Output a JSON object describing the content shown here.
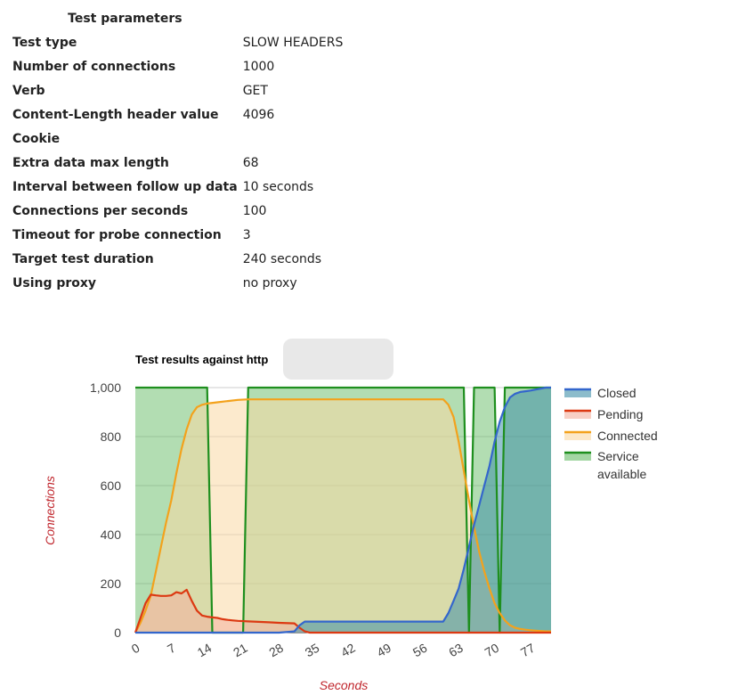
{
  "params": {
    "header": "Test parameters",
    "rows": [
      {
        "label": "Test type",
        "value": "SLOW HEADERS"
      },
      {
        "label": "Number of connections",
        "value": "1000"
      },
      {
        "label": "Verb",
        "value": "GET"
      },
      {
        "label": "Content-Length header value",
        "value": "4096"
      },
      {
        "label": "Cookie",
        "value": ""
      },
      {
        "label": "Extra data max length",
        "value": "68"
      },
      {
        "label": "Interval between follow up data",
        "value": "10 seconds"
      },
      {
        "label": "Connections per seconds",
        "value": "100"
      },
      {
        "label": "Timeout for probe connection",
        "value": "3"
      },
      {
        "label": "Target test duration",
        "value": "240 seconds"
      },
      {
        "label": "Using proxy",
        "value": "no proxy"
      }
    ]
  },
  "chart_data": {
    "type": "area",
    "title": "Test results against http",
    "xlabel": "Seconds",
    "ylabel": "Connections",
    "xlim": [
      0,
      81
    ],
    "ylim": [
      0,
      1000
    ],
    "x_ticks": [
      "0",
      "7",
      "14",
      "21",
      "28",
      "35",
      "42",
      "49",
      "56",
      "63",
      "70",
      "77"
    ],
    "y_ticks": [
      "0",
      "200",
      "400",
      "600",
      "800",
      "1,000"
    ],
    "legend_position": "right",
    "series": [
      {
        "name": "Closed",
        "color": "#3366cc",
        "fill": "#3f8fa8",
        "points": [
          [
            0,
            0
          ],
          [
            28,
            0
          ],
          [
            31,
            5
          ],
          [
            32,
            30
          ],
          [
            33,
            45
          ],
          [
            35,
            45
          ],
          [
            45,
            45
          ],
          [
            55,
            45
          ],
          [
            60,
            45
          ],
          [
            61,
            80
          ],
          [
            62,
            130
          ],
          [
            63,
            180
          ],
          [
            64,
            260
          ],
          [
            65,
            350
          ],
          [
            66,
            440
          ],
          [
            67,
            520
          ],
          [
            68,
            600
          ],
          [
            69,
            680
          ],
          [
            70,
            780
          ],
          [
            71,
            860
          ],
          [
            72,
            920
          ],
          [
            73,
            960
          ],
          [
            74,
            975
          ],
          [
            75,
            982
          ],
          [
            76,
            985
          ],
          [
            77,
            988
          ],
          [
            78,
            992
          ],
          [
            80,
            1000
          ],
          [
            81,
            1000
          ]
        ]
      },
      {
        "name": "Pending",
        "color": "#dc3912",
        "fill": "#f4b19e",
        "points": [
          [
            0,
            0
          ],
          [
            1,
            60
          ],
          [
            2,
            120
          ],
          [
            3,
            155
          ],
          [
            4,
            152
          ],
          [
            5,
            150
          ],
          [
            6,
            150
          ],
          [
            7,
            152
          ],
          [
            8,
            165
          ],
          [
            9,
            160
          ],
          [
            10,
            175
          ],
          [
            11,
            130
          ],
          [
            12,
            90
          ],
          [
            13,
            70
          ],
          [
            14,
            65
          ],
          [
            15,
            62
          ],
          [
            16,
            60
          ],
          [
            17,
            55
          ],
          [
            18,
            52
          ],
          [
            19,
            50
          ],
          [
            20,
            48
          ],
          [
            22,
            46
          ],
          [
            24,
            44
          ],
          [
            26,
            42
          ],
          [
            28,
            40
          ],
          [
            31,
            38
          ],
          [
            32,
            20
          ],
          [
            33,
            5
          ],
          [
            34,
            0
          ],
          [
            81,
            0
          ]
        ]
      },
      {
        "name": "Connected",
        "color": "#f3a21c",
        "fill": "#fad9a4",
        "points": [
          [
            0,
            0
          ],
          [
            1,
            40
          ],
          [
            2,
            90
          ],
          [
            3,
            150
          ],
          [
            4,
            250
          ],
          [
            5,
            350
          ],
          [
            6,
            450
          ],
          [
            7,
            540
          ],
          [
            8,
            650
          ],
          [
            9,
            750
          ],
          [
            10,
            830
          ],
          [
            11,
            890
          ],
          [
            12,
            920
          ],
          [
            13,
            930
          ],
          [
            14,
            935
          ],
          [
            16,
            940
          ],
          [
            18,
            945
          ],
          [
            20,
            950
          ],
          [
            22,
            952
          ],
          [
            30,
            952
          ],
          [
            40,
            952
          ],
          [
            50,
            952
          ],
          [
            60,
            952
          ],
          [
            61,
            930
          ],
          [
            62,
            880
          ],
          [
            63,
            780
          ],
          [
            64,
            660
          ],
          [
            65,
            540
          ],
          [
            66,
            430
          ],
          [
            67,
            330
          ],
          [
            68,
            250
          ],
          [
            69,
            180
          ],
          [
            70,
            120
          ],
          [
            71,
            80
          ],
          [
            72,
            50
          ],
          [
            73,
            30
          ],
          [
            74,
            20
          ],
          [
            75,
            15
          ],
          [
            76,
            12
          ],
          [
            77,
            10
          ],
          [
            78,
            8
          ],
          [
            80,
            5
          ],
          [
            81,
            5
          ]
        ]
      },
      {
        "name": "Service available",
        "color": "#1e8f1e",
        "fill": "#66bb66",
        "points": [
          [
            0,
            1000
          ],
          [
            14,
            1000
          ],
          [
            15,
            0
          ],
          [
            21,
            0
          ],
          [
            22,
            1000
          ],
          [
            64,
            1000
          ],
          [
            65,
            0
          ],
          [
            66,
            1000
          ],
          [
            70,
            1000
          ],
          [
            71,
            0
          ],
          [
            72,
            1000
          ],
          [
            81,
            1000
          ]
        ]
      }
    ]
  }
}
